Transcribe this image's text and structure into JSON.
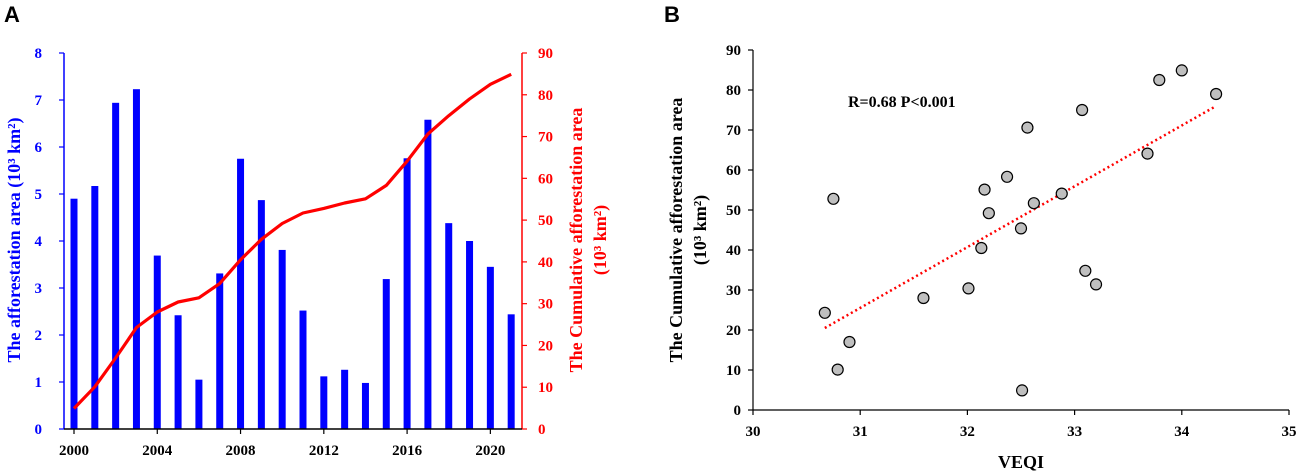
{
  "colors": {
    "bar": "#0000ff",
    "cumulative_line": "#ff0000",
    "trend_line": "#ff0000",
    "scatter_fill": "#bfbfbf",
    "axis_black": "#000000"
  },
  "panels": {
    "a": {
      "letter": "A"
    },
    "b": {
      "letter": "B"
    }
  },
  "chart_data": [
    {
      "panel": "A",
      "type": "bar",
      "x_years": [
        2000,
        2001,
        2002,
        2003,
        2004,
        2005,
        2006,
        2007,
        2008,
        2009,
        2010,
        2011,
        2012,
        2013,
        2014,
        2015,
        2016,
        2017,
        2018,
        2019,
        2020,
        2021
      ],
      "x_tick_labels": [
        "2000",
        "2004",
        "2008",
        "2012",
        "2016",
        "2020"
      ],
      "series": [
        {
          "kind": "bar",
          "axis": "left",
          "values": [
            4.9,
            5.17,
            6.94,
            7.23,
            3.69,
            2.42,
            1.05,
            3.31,
            5.75,
            4.87,
            3.81,
            2.52,
            1.12,
            1.26,
            0.98,
            3.19,
            5.76,
            6.58,
            4.38,
            4.0,
            3.45,
            2.44
          ]
        },
        {
          "kind": "line",
          "axis": "right",
          "values": [
            4.9,
            10.1,
            17.0,
            24.3,
            28.0,
            30.4,
            31.4,
            34.8,
            40.5,
            45.4,
            49.2,
            51.7,
            52.8,
            54.1,
            55.1,
            58.3,
            64.1,
            70.6,
            75.0,
            79.0,
            82.5,
            84.9
          ]
        }
      ],
      "y_left": {
        "label": "The afforestation area (10³ km²)",
        "range": [
          0,
          8
        ],
        "ticks": [
          "0",
          "1",
          "2",
          "3",
          "4",
          "5",
          "6",
          "7",
          "8"
        ]
      },
      "y_right": {
        "label_line1": "The Cumulative afforestation area",
        "label_line2": "(10³ km²)",
        "range": [
          0,
          90
        ],
        "ticks": [
          "0",
          "10",
          "20",
          "30",
          "40",
          "50",
          "60",
          "70",
          "80",
          "90"
        ]
      }
    },
    {
      "panel": "B",
      "type": "scatter",
      "points": [
        {
          "x": 30.67,
          "y": 24.3
        },
        {
          "x": 30.75,
          "y": 52.8
        },
        {
          "x": 30.79,
          "y": 10.1
        },
        {
          "x": 30.9,
          "y": 17.0
        },
        {
          "x": 31.59,
          "y": 28.0
        },
        {
          "x": 32.01,
          "y": 30.4
        },
        {
          "x": 32.13,
          "y": 40.5
        },
        {
          "x": 32.16,
          "y": 55.1
        },
        {
          "x": 32.2,
          "y": 49.2
        },
        {
          "x": 32.37,
          "y": 58.3
        },
        {
          "x": 32.5,
          "y": 45.4
        },
        {
          "x": 32.51,
          "y": 4.9
        },
        {
          "x": 32.56,
          "y": 70.6
        },
        {
          "x": 32.62,
          "y": 51.7
        },
        {
          "x": 32.88,
          "y": 54.1
        },
        {
          "x": 33.07,
          "y": 75.0
        },
        {
          "x": 33.1,
          "y": 34.8
        },
        {
          "x": 33.2,
          "y": 31.4
        },
        {
          "x": 33.68,
          "y": 64.1
        },
        {
          "x": 33.79,
          "y": 82.5
        },
        {
          "x": 34.0,
          "y": 84.9
        },
        {
          "x": 34.32,
          "y": 79.0
        }
      ],
      "trendline": {
        "x": [
          30.67,
          34.32
        ],
        "y": [
          20.5,
          76.0
        ]
      },
      "annotation": "R=0.68 P<0.001",
      "xlabel": "VEQI",
      "x_range": [
        30,
        35
      ],
      "x_ticks": [
        "30",
        "31",
        "32",
        "33",
        "34",
        "35"
      ],
      "ylabel_line1": "The Cumulative afforestation area",
      "ylabel_line2": "(10³ km²)",
      "y_range": [
        0,
        90
      ],
      "y_ticks": [
        "0",
        "10",
        "20",
        "30",
        "40",
        "50",
        "60",
        "70",
        "80",
        "90"
      ]
    }
  ]
}
